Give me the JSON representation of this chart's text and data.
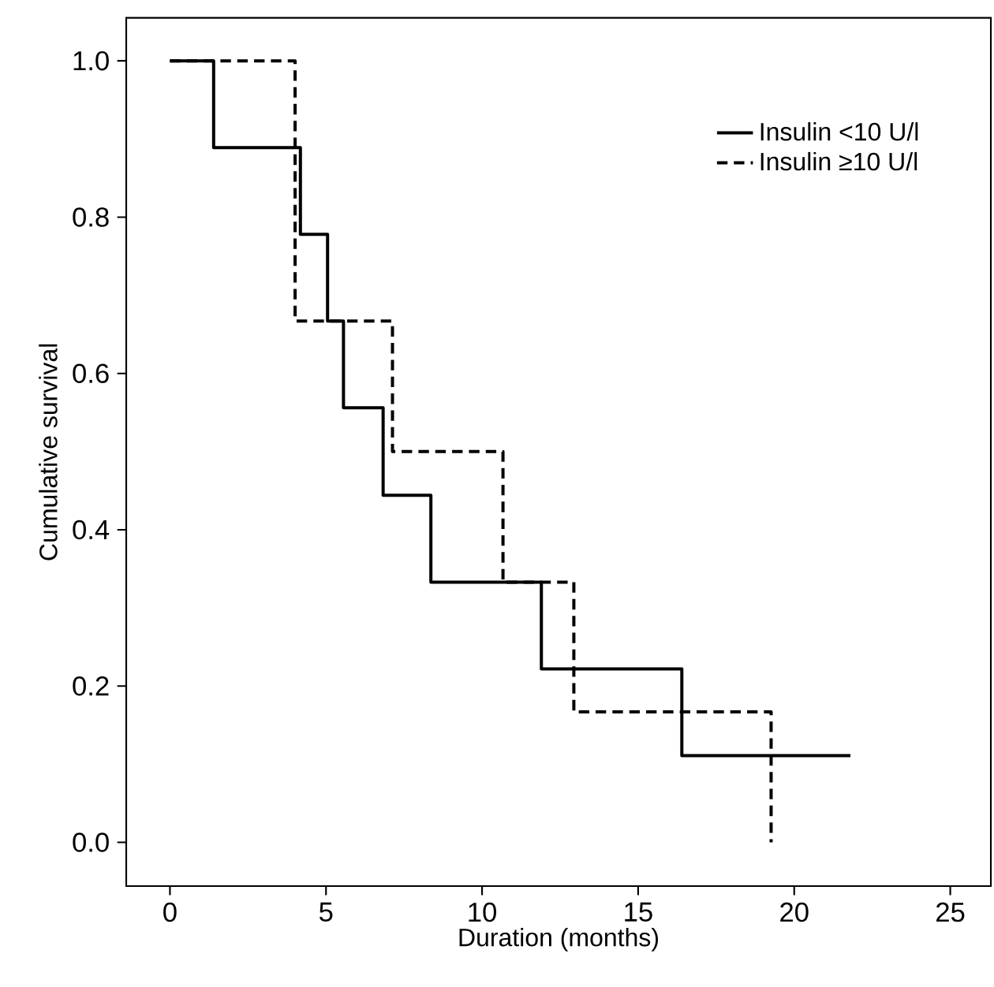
{
  "chart_data": {
    "type": "step",
    "xlabel": "Duration (months)",
    "ylabel": "Cumulative survival",
    "xlim": [
      -1.4,
      26.3
    ],
    "ylim": [
      -0.056,
      1.055
    ],
    "xticks": [
      0,
      5,
      10,
      15,
      20,
      25
    ],
    "yticks": [
      {
        "value": 0,
        "label": "0.0"
      },
      {
        "value": 0.2,
        "label": "0.2"
      },
      {
        "value": 0.4,
        "label": "0.4"
      },
      {
        "value": 0.6,
        "label": "0.6"
      },
      {
        "value": 0.8,
        "label": "0.8"
      },
      {
        "value": 1.0,
        "label": "1.0"
      }
    ],
    "legend": "top right",
    "grid": false,
    "marker": "none",
    "series": [
      {
        "name": "Insulin <10 U/l",
        "color": "#000000",
        "line_style": "solid",
        "x": [
          0,
          1.4,
          4.18,
          5.05,
          5.56,
          6.83,
          8.36,
          11.9,
          16.4,
          21.8
        ],
        "values": [
          1.0,
          0.889,
          0.778,
          0.667,
          0.556,
          0.444,
          0.333,
          0.222,
          0.111,
          0.111
        ]
      },
      {
        "name": "Insulin ≥10 U/l",
        "color": "#000000",
        "line_style": "dashed",
        "x": [
          0,
          4.01,
          7.13,
          10.67,
          12.94,
          19.26
        ],
        "values": [
          1.0,
          0.667,
          0.5,
          0.333,
          0.167,
          0.0
        ]
      }
    ]
  }
}
